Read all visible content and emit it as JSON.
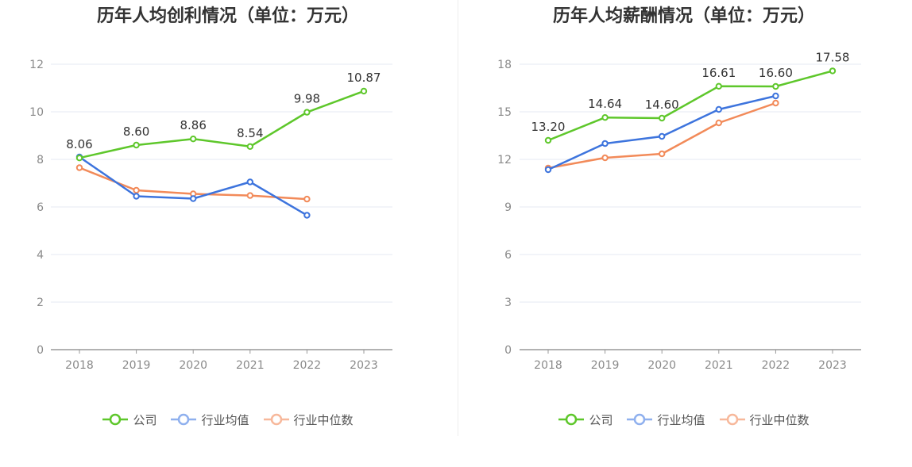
{
  "charts": {
    "profit": {
      "title": "历年人均创利情况（单位：万元）"
    },
    "salary": {
      "title": "历年人均薪酬情况（单位：万元）"
    }
  },
  "legend": {
    "company": "公司",
    "industry_avg": "行业均值",
    "industry_median": "行业中位数"
  },
  "colors": {
    "company": "#5ec72b",
    "industry_avg": "#3d74dd",
    "industry_median": "#f28a59"
  },
  "chart_data": [
    {
      "type": "line",
      "title": "历年人均创利情况（单位：万元）",
      "categories": [
        "2018",
        "2019",
        "2020",
        "2021",
        "2022",
        "2023"
      ],
      "ylim": [
        0,
        12
      ],
      "yticks": [
        0,
        2,
        4,
        6,
        8,
        10,
        12
      ],
      "grid": true,
      "legend_position": "bottom",
      "series": [
        {
          "name": "公司",
          "values": [
            8.06,
            8.6,
            8.86,
            8.54,
            9.98,
            10.87
          ],
          "labels": [
            "8.06",
            "8.60",
            "8.86",
            "8.54",
            "9.98",
            "10.87"
          ]
        },
        {
          "name": "行业均值",
          "values": [
            8.1,
            6.45,
            6.35,
            7.05,
            5.65,
            null
          ]
        },
        {
          "name": "行业中位数",
          "values": [
            7.65,
            6.7,
            6.55,
            6.48,
            6.33,
            null
          ]
        }
      ]
    },
    {
      "type": "line",
      "title": "历年人均薪酬情况（单位：万元）",
      "categories": [
        "2018",
        "2019",
        "2020",
        "2021",
        "2022",
        "2023"
      ],
      "ylim": [
        0,
        18
      ],
      "yticks": [
        0,
        3,
        6,
        9,
        12,
        15,
        18
      ],
      "grid": true,
      "legend_position": "bottom",
      "series": [
        {
          "name": "公司",
          "values": [
            13.2,
            14.64,
            14.6,
            16.61,
            16.6,
            17.58
          ],
          "labels": [
            "13.20",
            "14.64",
            "14.60",
            "16.61",
            "16.60",
            "17.58"
          ]
        },
        {
          "name": "行业均值",
          "values": [
            11.35,
            13.0,
            13.45,
            15.15,
            16.0,
            null
          ]
        },
        {
          "name": "行业中位数",
          "values": [
            11.45,
            12.1,
            12.35,
            14.3,
            15.55,
            null
          ]
        }
      ]
    }
  ]
}
